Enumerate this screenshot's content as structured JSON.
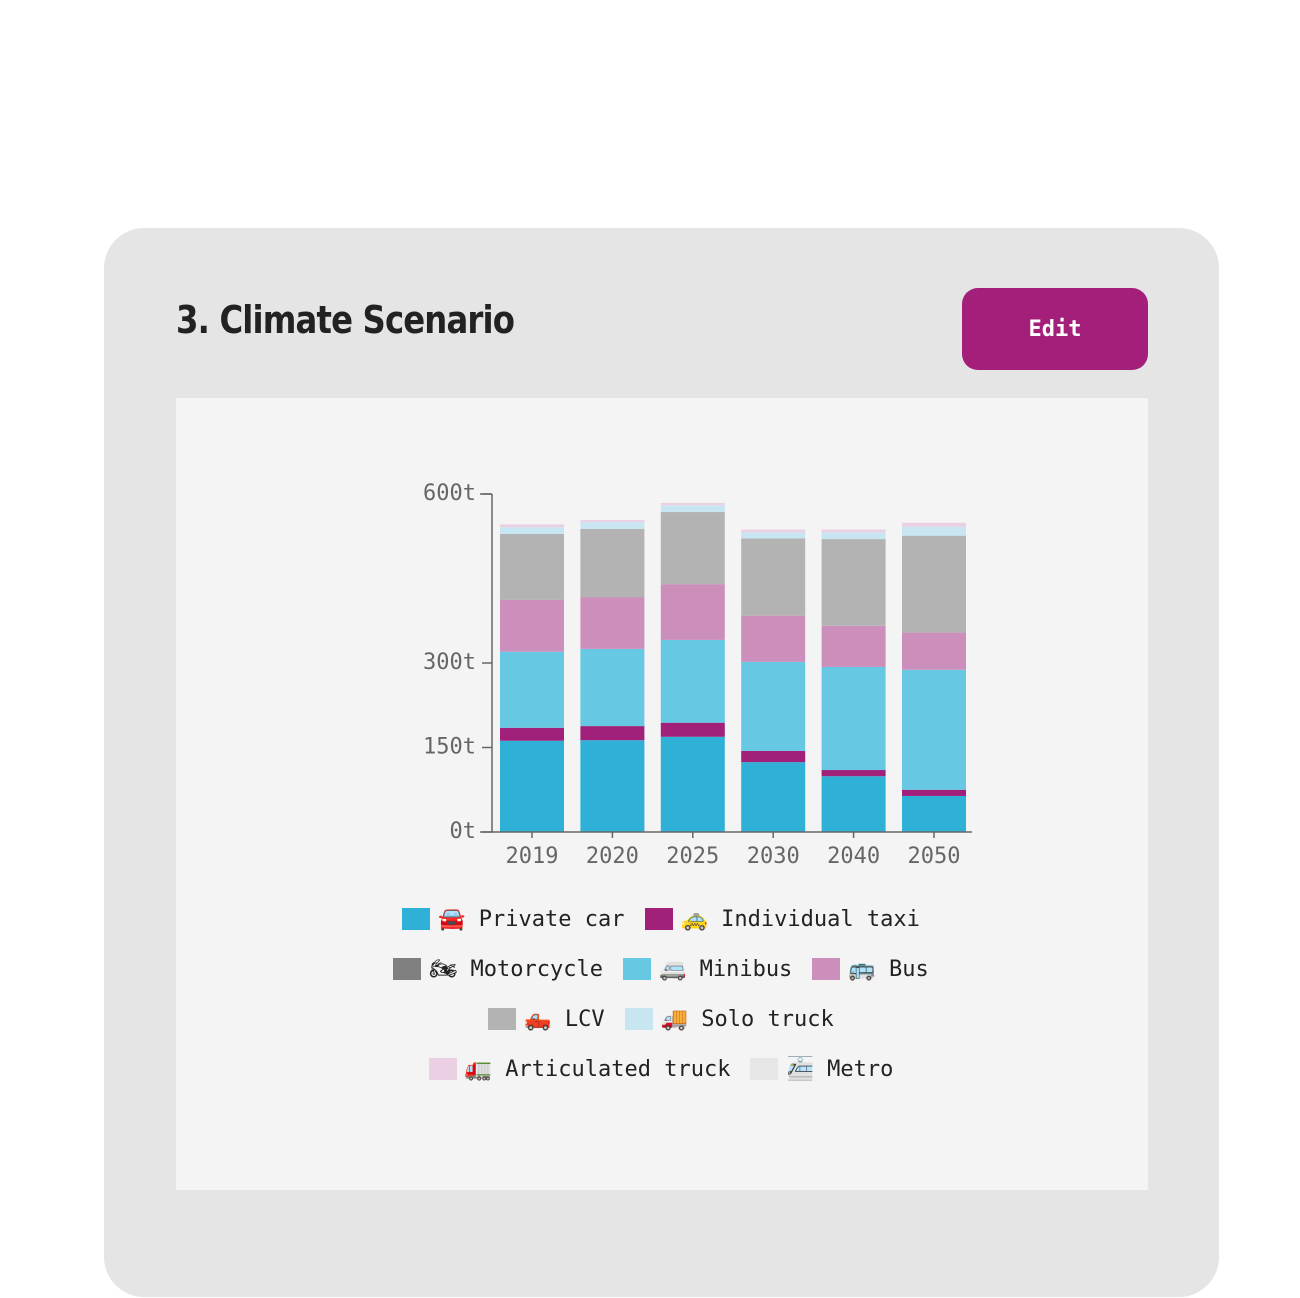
{
  "header": {
    "title": "3. Climate Scenario",
    "button": "Edit"
  },
  "chart_data": {
    "type": "stacked-bar",
    "categories": [
      "2019",
      "2020",
      "2025",
      "2030",
      "2040",
      "2050"
    ],
    "series": [
      {
        "name": "🚘 Private car",
        "color": "#2fb0d6",
        "values": [
          162,
          163,
          169,
          124,
          99,
          64
        ]
      },
      {
        "name": "🚕 Individual taxi",
        "color": "#a0207a",
        "values": [
          23,
          25,
          25,
          20,
          11,
          11
        ]
      },
      {
        "name": "🏍 Motorcycle",
        "color": "#808080",
        "values": [
          0,
          0,
          0,
          0,
          0,
          0
        ]
      },
      {
        "name": "🚐 Minibus",
        "color": "#66c8e3",
        "values": [
          135,
          137,
          147,
          158,
          183,
          213
        ]
      },
      {
        "name": "🚌 Bus",
        "color": "#cc8fbb",
        "values": [
          92,
          92,
          99,
          82,
          73,
          66
        ]
      },
      {
        "name": "🛻 LCV",
        "color": "#b3b3b3",
        "values": [
          117,
          121,
          128,
          137,
          154,
          172
        ]
      },
      {
        "name": "🚚 Solo truck",
        "color": "#c8e6f1",
        "values": [
          12,
          12,
          12,
          11,
          12,
          16
        ]
      },
      {
        "name": "🚛 Articulated truck",
        "color": "#ebcfe2",
        "values": [
          5,
          4,
          4,
          5,
          5,
          7
        ]
      },
      {
        "name": "🚈 Metro",
        "color": "#e6e6e6",
        "values": [
          0,
          0,
          0,
          0,
          0,
          0
        ]
      }
    ],
    "ylim": [
      0,
      600
    ],
    "yticks": [
      {
        "value": 0,
        "label": "0t"
      },
      {
        "value": 150,
        "label": "150t"
      },
      {
        "value": 300,
        "label": "300t"
      },
      {
        "value": 600,
        "label": "600t"
      }
    ]
  }
}
